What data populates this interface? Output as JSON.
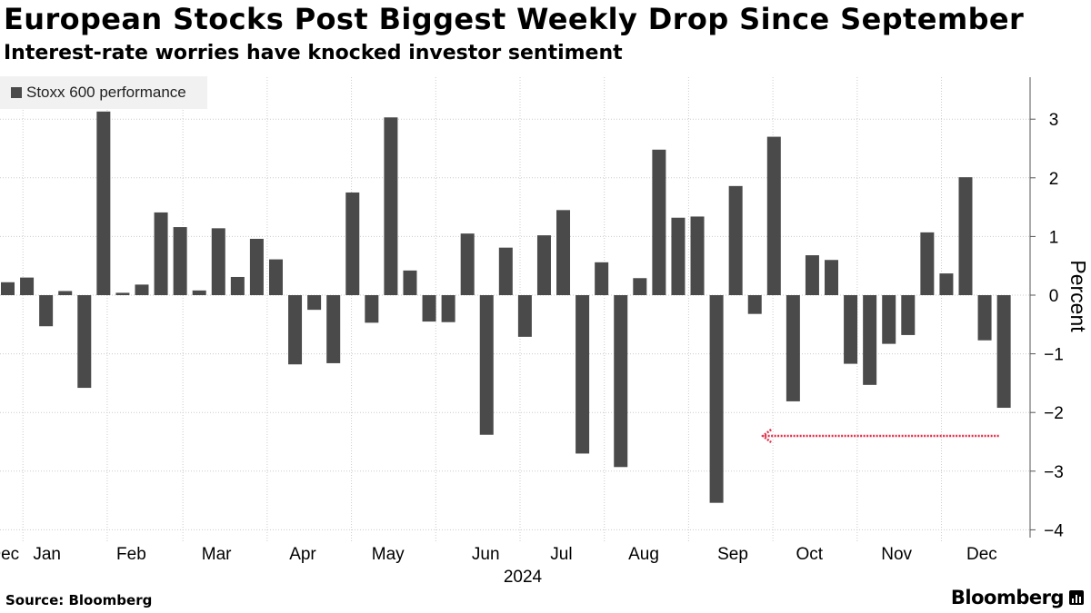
{
  "header": {
    "title": "European Stocks Post Biggest Weekly Drop Since September",
    "subtitle": "Interest-rate worries have knocked investor sentiment"
  },
  "footer": {
    "source": "Source: Bloomberg",
    "brand": "Bloomberg"
  },
  "colors": {
    "bar": "#4a4a4a",
    "grid": "#cccccc",
    "axis": "#555555",
    "annotation_arrow": "#e0304a"
  },
  "chart_data": {
    "type": "bar",
    "title": "European Stocks Post Biggest Weekly Drop Since September",
    "subtitle": "Interest-rate worries have knocked investor sentiment",
    "xlabel": "2024",
    "ylabel": "Percent",
    "ylim": [
      -4.2,
      3.75
    ],
    "yticks": [
      3,
      2,
      1,
      0,
      -1,
      -2,
      -3,
      -4
    ],
    "y_axis_side": "right",
    "grid": "dotted",
    "legend": {
      "label": "Stoxx 600 performance",
      "placement": "top-left"
    },
    "series": [
      {
        "name": "Stoxx 600 performance",
        "values": [
          0.22,
          0.3,
          -0.53,
          0.07,
          -1.58,
          3.13,
          0.04,
          0.18,
          1.41,
          1.16,
          0.08,
          1.14,
          0.31,
          0.96,
          0.61,
          -1.18,
          -0.25,
          -1.16,
          1.75,
          -0.47,
          3.03,
          0.42,
          -0.45,
          -0.46,
          1.05,
          -2.38,
          0.81,
          -0.71,
          1.02,
          1.45,
          -2.7,
          0.56,
          -2.93,
          0.29,
          2.48,
          1.32,
          1.34,
          -3.54,
          1.86,
          -0.32,
          2.7,
          -1.81,
          0.68,
          0.6,
          -1.17,
          -1.53,
          -0.83,
          -0.68,
          1.07,
          0.37,
          2.01,
          -0.77,
          -1.92
        ]
      }
    ],
    "month_labels": [
      {
        "label": "Dec",
        "week_position": -0.2
      },
      {
        "label": "Jan",
        "week_position": 2.05
      },
      {
        "label": "Feb",
        "week_position": 6.45
      },
      {
        "label": "Mar",
        "week_position": 10.9
      },
      {
        "label": "Apr",
        "week_position": 15.4
      },
      {
        "label": "May",
        "week_position": 19.85
      },
      {
        "label": "Jun",
        "week_position": 24.95
      },
      {
        "label": "Jul",
        "week_position": 28.9
      },
      {
        "label": "Aug",
        "week_position": 33.2
      },
      {
        "label": "Sep",
        "week_position": 37.85
      },
      {
        "label": "Oct",
        "week_position": 41.85
      },
      {
        "label": "Nov",
        "week_position": 46.4
      },
      {
        "label": "Dec",
        "week_position": 50.85
      }
    ],
    "month_separators": [
      1.15,
      5.55,
      9.5,
      13.9,
      18.3,
      22.7,
      27.1,
      31.5,
      35.9,
      40.3,
      44.7,
      49.1
    ],
    "annotation": {
      "type": "arrow",
      "from_value": -2.4,
      "from_week": 52,
      "to_week": 39.4,
      "note": "dotted arrow pointing back to September low"
    }
  }
}
